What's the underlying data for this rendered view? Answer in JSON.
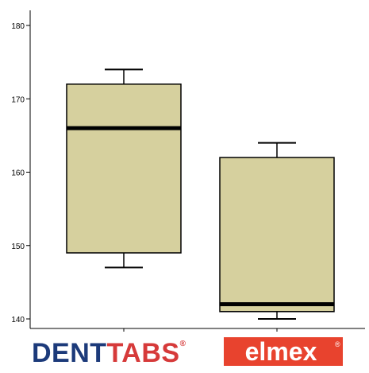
{
  "chart_data": {
    "type": "box",
    "title": "",
    "xlabel": "",
    "ylabel": "",
    "ylim": [
      138,
      183
    ],
    "y_ticks": [
      140,
      150,
      160,
      170,
      180
    ],
    "grid": false,
    "categories": [
      "DENTTABS",
      "elmex"
    ],
    "boxes": [
      {
        "category": "DENTTABS",
        "whisker_low": 147,
        "q1": 149,
        "median": 166,
        "q3": 172,
        "whisker_high": 174
      },
      {
        "category": "elmex",
        "whisker_low": 140,
        "q1": 141,
        "median": 142,
        "q3": 162,
        "whisker_high": 164
      }
    ],
    "colors": {
      "box_fill": "#d6d09e",
      "stroke": "#000000"
    }
  },
  "logos": {
    "denttabs": {
      "text_dent": "DENT",
      "text_tabs": "TABS",
      "mark": "®",
      "color_dent": "#1c3a7a",
      "color_tabs": "#d63a3a"
    },
    "elmex": {
      "text": "elmex",
      "mark": "®",
      "bg": "#e8432e",
      "fg": "#ffffff"
    }
  }
}
